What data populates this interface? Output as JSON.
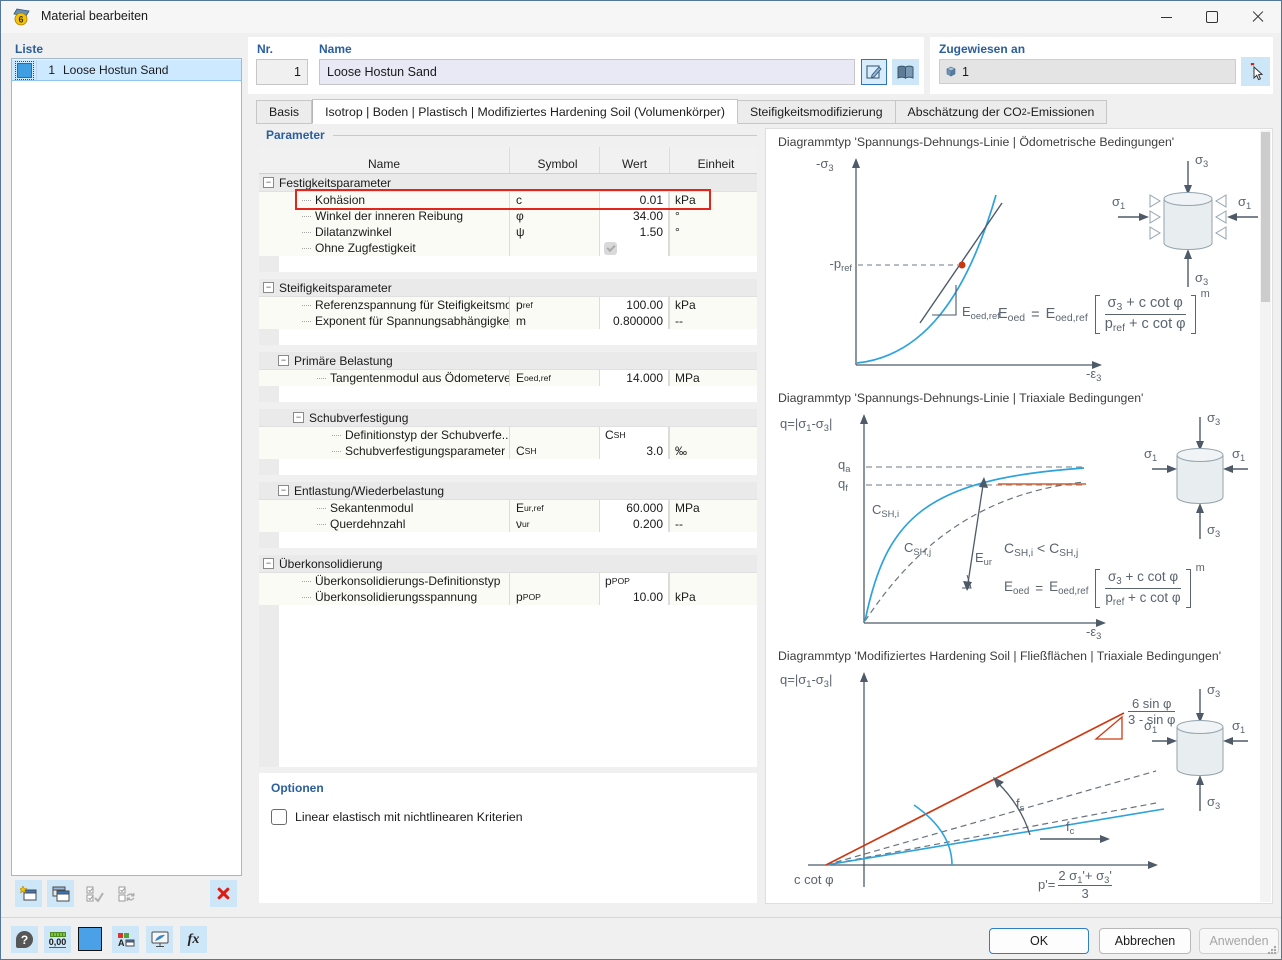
{
  "window": {
    "title": "Material bearbeiten"
  },
  "icons": {
    "app_badge": "6",
    "collapse": "−",
    "units_text": "0,00",
    "fx_text": "fx",
    "help_text": "?",
    "display_letter": "A"
  },
  "list_panel": {
    "label": "Liste",
    "item": {
      "number": "1",
      "name": "Loose Hostun Sand"
    }
  },
  "header": {
    "nr_label": "Nr.",
    "nr_value": "1",
    "name_label": "Name",
    "name_value": "Loose Hostun Sand",
    "assigned_label": "Zugewiesen an",
    "assigned_value": "1"
  },
  "tabs": [
    {
      "label": "Basis"
    },
    {
      "label": "Isotrop | Boden | Plastisch | Modifiziertes Hardening Soil (Volumenkörper)"
    },
    {
      "label": "Steifigkeitsmodifizierung"
    },
    {
      "label": "Abschätzung der CO~2~-Emissionen"
    }
  ],
  "parameters": {
    "section_label": "Parameter",
    "columns": {
      "name": "Name",
      "symbol": "Symbol",
      "value": "Wert",
      "unit": "Einheit"
    },
    "rows": [
      {
        "type": "group",
        "level": 0,
        "name": "Festigkeitsparameter"
      },
      {
        "type": "item",
        "level": 1,
        "name": "Kohäsion",
        "symbol": "c",
        "value": "0.01",
        "unit": "kPa",
        "highlight": true
      },
      {
        "type": "item",
        "level": 1,
        "name": "Winkel der inneren Reibung",
        "symbol": "φ",
        "value": "34.00",
        "unit": "°"
      },
      {
        "type": "item",
        "level": 1,
        "name": "Dilatanzwinkel",
        "symbol": "ψ",
        "value": "1.50",
        "unit": "°"
      },
      {
        "type": "item",
        "level": 1,
        "name": "Ohne Zugfestigkeit",
        "checkbox": true
      },
      {
        "type": "blank"
      },
      {
        "type": "spacer"
      },
      {
        "type": "group",
        "level": 0,
        "name": "Steifigkeitsparameter"
      },
      {
        "type": "item",
        "level": 1,
        "name": "Referenzspannung für Steifigkeitsmo...",
        "symbol": "p~ref~",
        "value": "100.00",
        "unit": "kPa"
      },
      {
        "type": "item",
        "level": 1,
        "name": "Exponent für Spannungsabhängigkei...",
        "symbol": "m",
        "value": "0.800000",
        "unit": "--"
      },
      {
        "type": "blank"
      },
      {
        "type": "spacer"
      },
      {
        "type": "group",
        "level": 1,
        "name": "Primäre Belastung"
      },
      {
        "type": "item",
        "level": 2,
        "name": "Tangentenmodul aus Ödometerve...",
        "symbol": "E~oed,ref~",
        "value": "14.000",
        "unit": "MPa"
      },
      {
        "type": "blank"
      },
      {
        "type": "spacer"
      },
      {
        "type": "group",
        "level": 2,
        "name": "Schubverfestigung"
      },
      {
        "type": "item",
        "level": 3,
        "name": "Definitionstyp der Schubverfe...",
        "value_rich": "C~SH~"
      },
      {
        "type": "item",
        "level": 3,
        "name": "Schubverfestigungsparameter",
        "symbol": "C~SH~",
        "value": "3.0",
        "unit": "‰"
      },
      {
        "type": "blank"
      },
      {
        "type": "spacer"
      },
      {
        "type": "group",
        "level": 1,
        "name": "Entlastung/Wiederbelastung"
      },
      {
        "type": "item",
        "level": 2,
        "name": "Sekantenmodul",
        "symbol": "E~ur,ref~",
        "value": "60.000",
        "unit": "MPa"
      },
      {
        "type": "item",
        "level": 2,
        "name": "Querdehnzahl",
        "symbol": "ν~ur~",
        "value": "0.200",
        "unit": "--"
      },
      {
        "type": "blank"
      },
      {
        "type": "spacer"
      },
      {
        "type": "group",
        "level": 0,
        "name": "Überkonsolidierung"
      },
      {
        "type": "item",
        "level": 1,
        "name": "Überkonsolidierungs-Definitionstyp",
        "value_rich": "p^POP^"
      },
      {
        "type": "item",
        "level": 1,
        "name": "Überkonsolidierungsspannung",
        "symbol": "p^POP^",
        "value": "10.00",
        "unit": "kPa"
      }
    ]
  },
  "options": {
    "section_label": "Optionen",
    "checkbox_label": "Linear elastisch mit nichtlinearen Kriterien"
  },
  "formula_oed": {
    "lhs": "E~oed~",
    "eq": "=",
    "rhs": "E~oed,ref~",
    "num": "σ~3~ + c cot φ",
    "den": "p~ref~ + c cot φ",
    "exp": "m"
  },
  "diagrams": {
    "d1": {
      "title": "Diagrammtyp 'Spannungs-Dehnungs-Linie | Ödometrische Bedingungen'",
      "y_label": "-σ~3~",
      "x_label": "-ε~3~",
      "pref_label": "-p~ref~",
      "slope_label": "E~oed,ref~",
      "sigma1": "σ~1~",
      "sigma3": "σ~3~"
    },
    "d2": {
      "title": "Diagrammtyp 'Spannungs-Dehnungs-Linie | Triaxiale Bedingungen'",
      "y_label": "q=|σ~1~-σ~3~|",
      "x_label": "-ε~3~",
      "qa": "q~a~",
      "qf": "q~f~",
      "csh_i": "C~SH,i~",
      "csh_j": "C~SH,j~",
      "eur": "E~ur~",
      "compare": "C~SH,i~ <  C~SH,j~",
      "sigma1": "σ~1~",
      "sigma3": "σ~3~"
    },
    "d3": {
      "title": "Diagrammtyp 'Modifiziertes Hardening Soil | Fließflächen | Triaxiale Bedingungen'",
      "y_label": "q=|σ~1~-σ~3~|",
      "slope_num": "6 sin φ",
      "slope_den": "3 - sin φ",
      "fs": "f~s~",
      "fc": "f~c~",
      "origin": "c cot φ",
      "x_eq": "p'=",
      "x_num": "2 σ~1~'+ σ~3~'",
      "x_den": "3",
      "sigma1": "σ~1~",
      "sigma3": "σ~3~"
    }
  },
  "colors": {
    "accent": "#2a5e9c",
    "curve_blue": "#2ba3dd",
    "curve_orange": "#d55f33",
    "curve_red": "#cd3a12",
    "highlight_red": "#e3261d",
    "selection": "#cde9ff"
  },
  "footer": {
    "ok": "OK",
    "cancel": "Abbrechen",
    "apply": "Anwenden"
  }
}
